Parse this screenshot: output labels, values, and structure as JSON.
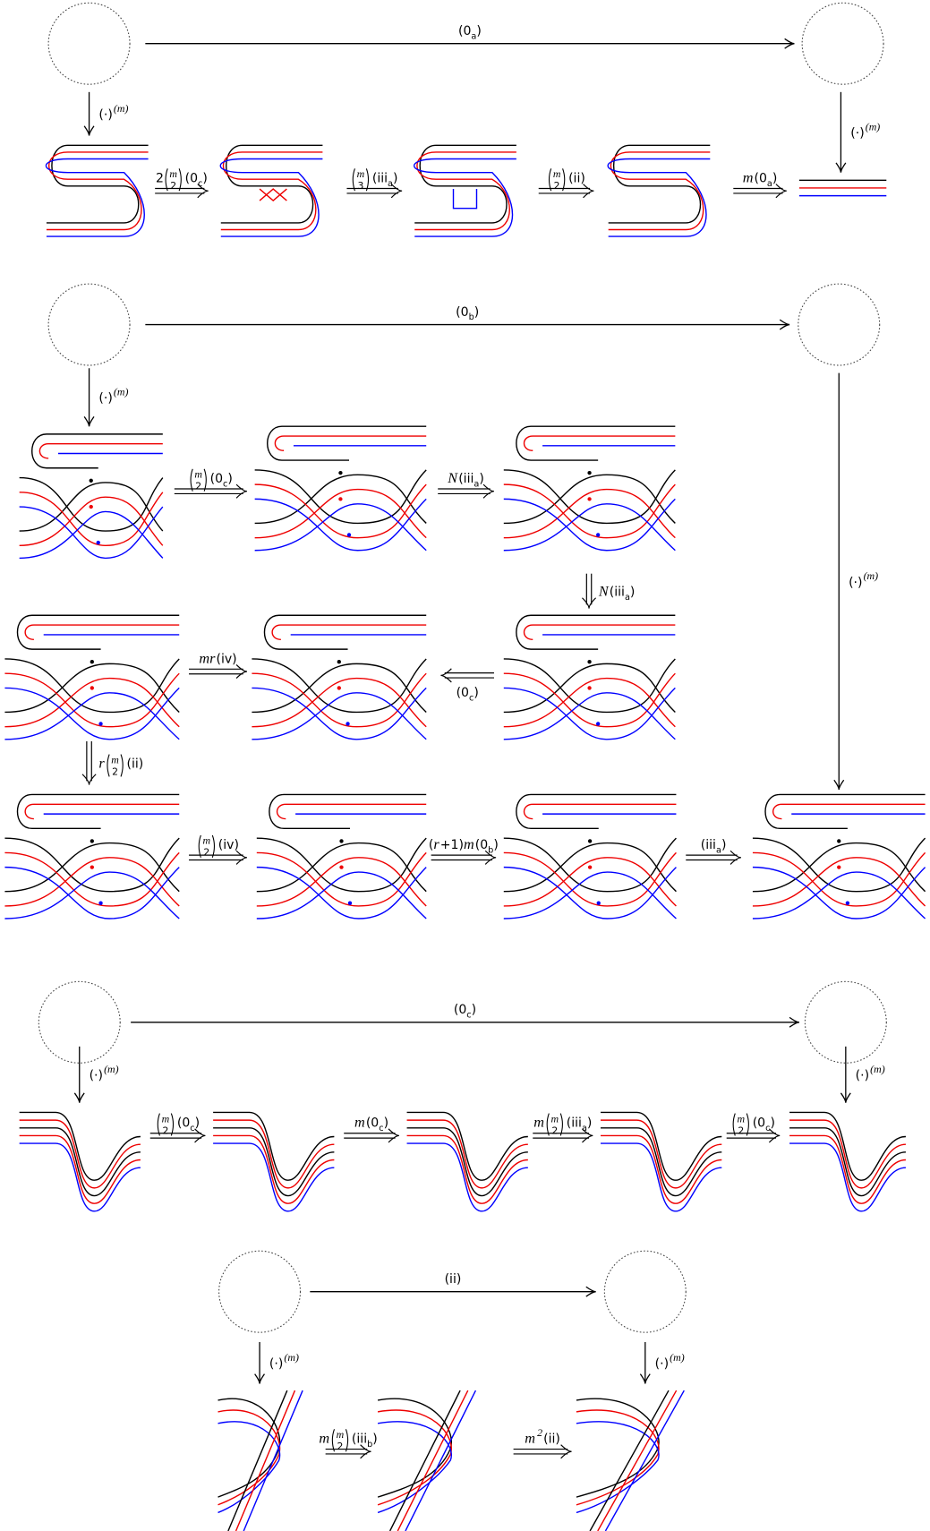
{
  "labels": [
    [
      {
        "text": "(0"
      },
      {
        "sub": "a"
      },
      {
        "text": ")"
      }
    ],
    [
      {
        "text": "(·)"
      },
      {
        "sup": "(m)"
      }
    ],
    [
      {
        "text": "(·)"
      },
      {
        "sup": "(m)"
      }
    ],
    [
      {
        "text": "2"
      },
      {
        "binom": [
          "m",
          "2"
        ]
      },
      {
        "text": "(0"
      },
      {
        "sub": "c"
      },
      {
        "text": ")"
      }
    ],
    [
      {
        "binom": [
          "m",
          "3"
        ]
      },
      {
        "text": "(iii"
      },
      {
        "sub": "a"
      },
      {
        "text": ")"
      }
    ],
    [
      {
        "binom": [
          "m",
          "2"
        ]
      },
      {
        "text": "(ii)"
      }
    ],
    [
      {
        "italic": "m"
      },
      {
        "text": "(0"
      },
      {
        "sub": "a"
      },
      {
        "text": ")"
      }
    ],
    [
      {
        "text": "(0"
      },
      {
        "sub": "b"
      },
      {
        "text": ")"
      }
    ],
    [
      {
        "text": "(·)"
      },
      {
        "sup": "(m)"
      }
    ],
    [
      {
        "text": "(·)"
      },
      {
        "sup": "(m)"
      }
    ],
    [
      {
        "binom": [
          "m",
          "2"
        ]
      },
      {
        "text": "(0"
      },
      {
        "sub": "c"
      },
      {
        "text": ")"
      }
    ],
    [
      {
        "italic": "N"
      },
      {
        "text": "(iii"
      },
      {
        "sub": "a"
      },
      {
        "text": ")"
      }
    ],
    [
      {
        "italic": "N"
      },
      {
        "text": "(iii"
      },
      {
        "sub": "a"
      },
      {
        "text": ")"
      }
    ],
    [
      {
        "italic": "mr"
      },
      {
        "text": "(iv)"
      }
    ],
    [
      {
        "text": "(0"
      },
      {
        "sub": "c"
      },
      {
        "text": ")"
      }
    ],
    [
      {
        "italic": "r"
      },
      {
        "binom": [
          "m",
          "2"
        ]
      },
      {
        "text": "(ii)"
      }
    ],
    [
      {
        "binom": [
          "m",
          "2"
        ]
      },
      {
        "text": "(iv)"
      }
    ],
    [
      {
        "text": "("
      },
      {
        "italic": "r"
      },
      {
        "text": "+1)"
      },
      {
        "italic": "m"
      },
      {
        "text": "(0"
      },
      {
        "sub": "b"
      },
      {
        "text": ")"
      }
    ],
    [
      {
        "text": "(iii"
      },
      {
        "sub": "a"
      },
      {
        "text": ")"
      }
    ],
    [
      {
        "text": "(0"
      },
      {
        "sub": "c"
      },
      {
        "text": ")"
      }
    ],
    [
      {
        "text": "(·)"
      },
      {
        "sup": "(m)"
      }
    ],
    [
      {
        "text": "(·)"
      },
      {
        "sup": "(m)"
      }
    ],
    [
      {
        "binom": [
          "m",
          "2"
        ]
      },
      {
        "text": "(0"
      },
      {
        "sub": "c"
      },
      {
        "text": ")"
      }
    ],
    [
      {
        "italic": "m"
      },
      {
        "text": "(0"
      },
      {
        "sub": "c"
      },
      {
        "text": ")"
      }
    ],
    [
      {
        "italic": "m"
      },
      {
        "binom": [
          "m",
          "2"
        ]
      },
      {
        "text": "(iii"
      },
      {
        "sub": "a"
      },
      {
        "text": ")"
      }
    ],
    [
      {
        "binom": [
          "m",
          "2"
        ]
      },
      {
        "text": "(0"
      },
      {
        "sub": "c"
      },
      {
        "text": ")"
      }
    ],
    [
      {
        "text": "(ii)"
      }
    ],
    [
      {
        "text": "(·)"
      },
      {
        "sup": "(m)"
      }
    ],
    [
      {
        "text": "(·)"
      },
      {
        "sup": "(m)"
      }
    ],
    [
      {
        "italic": "m"
      },
      {
        "binom": [
          "m",
          "2"
        ]
      },
      {
        "text": "(iii"
      },
      {
        "sub": "b"
      },
      {
        "text": ")"
      }
    ],
    [
      {
        "italic": "m"
      },
      {
        "sup": "2"
      },
      {
        "text": "(ii)"
      }
    ]
  ]
}
